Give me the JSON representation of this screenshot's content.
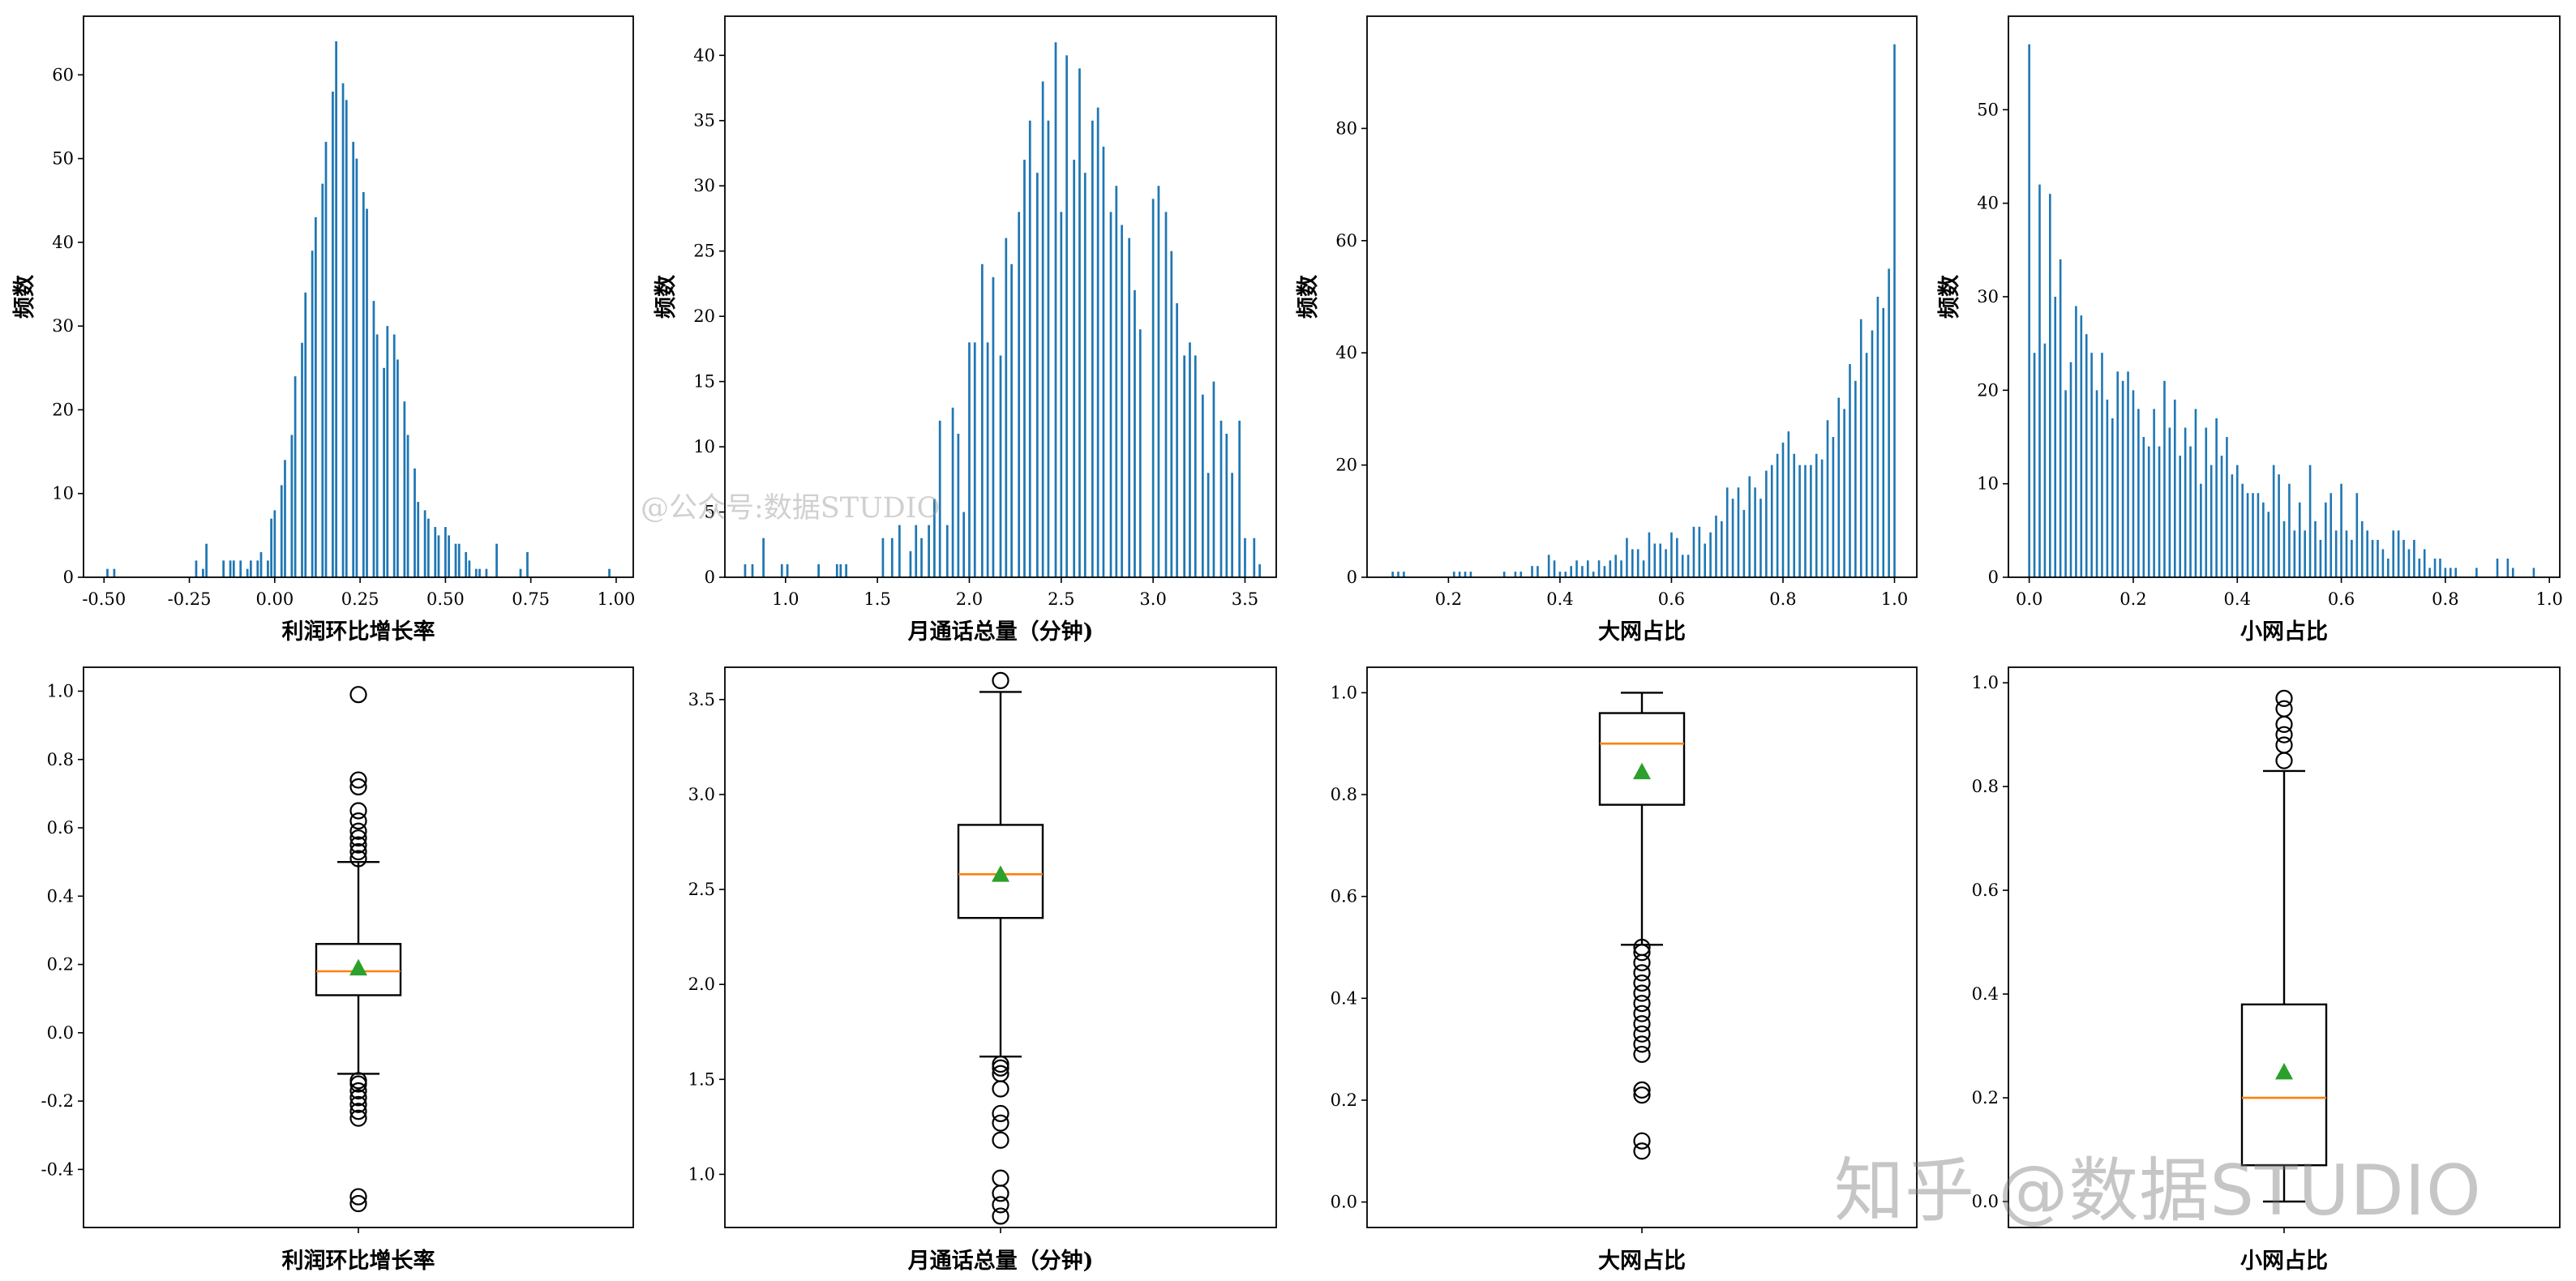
{
  "colors": {
    "bar": "#1f77b4",
    "median": "#ff7f0e",
    "mean": "#2ca02c",
    "frame": "#000000"
  },
  "watermarks": {
    "middle": "@公众号:数据STUDIO",
    "corner": "知乎 @数据STUDIO"
  },
  "chart_data": [
    {
      "type": "bar",
      "title": "",
      "xlabel": "利润环比增长率",
      "ylabel": "频数",
      "xlim": [
        -0.56,
        1.05
      ],
      "ylim": [
        0,
        67
      ],
      "xticks": [
        -0.5,
        -0.25,
        0.0,
        0.25,
        0.5,
        0.75,
        1.0
      ],
      "xtick_labels": [
        "-0.50",
        "-0.25",
        "0.00",
        "0.25",
        "0.50",
        "0.75",
        "1.00"
      ],
      "yticks": [
        0,
        10,
        20,
        30,
        40,
        50,
        60
      ],
      "ytick_labels": [
        "0",
        "10",
        "20",
        "30",
        "40",
        "50",
        "60"
      ],
      "bar_width": 0.0065,
      "x": [
        -0.49,
        -0.47,
        -0.23,
        -0.21,
        -0.2,
        -0.15,
        -0.13,
        -0.12,
        -0.1,
        -0.08,
        -0.07,
        -0.05,
        -0.04,
        -0.02,
        -0.01,
        0.0,
        0.02,
        0.03,
        0.05,
        0.06,
        0.08,
        0.09,
        0.11,
        0.12,
        0.14,
        0.15,
        0.17,
        0.18,
        0.2,
        0.21,
        0.23,
        0.24,
        0.26,
        0.27,
        0.29,
        0.3,
        0.32,
        0.33,
        0.35,
        0.36,
        0.38,
        0.39,
        0.41,
        0.42,
        0.44,
        0.45,
        0.47,
        0.48,
        0.5,
        0.51,
        0.53,
        0.54,
        0.56,
        0.57,
        0.59,
        0.6,
        0.62,
        0.65,
        0.72,
        0.74,
        0.98
      ],
      "values": [
        1,
        1,
        2,
        1,
        4,
        2,
        2,
        2,
        2,
        1,
        2,
        2,
        3,
        2,
        7,
        8,
        11,
        14,
        17,
        24,
        28,
        34,
        39,
        43,
        47,
        52,
        58,
        64,
        59,
        57,
        52,
        50,
        46,
        44,
        33,
        29,
        25,
        30,
        29,
        26,
        21,
        17,
        13,
        9,
        8,
        7,
        6,
        5,
        6,
        5,
        4,
        4,
        3,
        2,
        1,
        1,
        1,
        4,
        1,
        3,
        1
      ]
    },
    {
      "type": "bar",
      "title": "",
      "xlabel": "月通话总量（分钟)",
      "ylabel": "频数",
      "xlim": [
        0.67,
        3.67
      ],
      "ylim": [
        0,
        43
      ],
      "xticks": [
        1.0,
        1.5,
        2.0,
        2.5,
        3.0,
        3.5
      ],
      "xtick_labels": [
        "1.0",
        "1.5",
        "2.0",
        "2.5",
        "3.0",
        "3.5"
      ],
      "yticks": [
        0,
        5,
        10,
        15,
        20,
        25,
        30,
        35,
        40
      ],
      "ytick_labels": [
        "0",
        "5",
        "10",
        "15",
        "20",
        "25",
        "30",
        "35",
        "40"
      ],
      "bar_width": 0.012,
      "x": [
        0.78,
        0.82,
        0.88,
        0.98,
        1.01,
        1.18,
        1.28,
        1.3,
        1.33,
        1.53,
        1.58,
        1.62,
        1.68,
        1.71,
        1.74,
        1.78,
        1.81,
        1.84,
        1.88,
        1.91,
        1.94,
        1.97,
        2.0,
        2.03,
        2.07,
        2.1,
        2.13,
        2.17,
        2.2,
        2.23,
        2.27,
        2.3,
        2.33,
        2.37,
        2.4,
        2.43,
        2.47,
        2.5,
        2.53,
        2.57,
        2.6,
        2.63,
        2.67,
        2.7,
        2.73,
        2.77,
        2.8,
        2.83,
        2.87,
        2.9,
        2.93,
        3.0,
        3.03,
        3.07,
        3.1,
        3.13,
        3.17,
        3.2,
        3.23,
        3.27,
        3.3,
        3.33,
        3.37,
        3.4,
        3.43,
        3.47,
        3.5,
        3.55,
        3.58
      ],
      "values": [
        1,
        1,
        3,
        1,
        1,
        1,
        1,
        1,
        1,
        3,
        3,
        4,
        2,
        4,
        3,
        4,
        6,
        12,
        4,
        13,
        11,
        5,
        18,
        18,
        24,
        18,
        23,
        17,
        26,
        24,
        28,
        32,
        35,
        31,
        38,
        35,
        41,
        28,
        40,
        32,
        39,
        31,
        35,
        36,
        33,
        28,
        30,
        27,
        26,
        22,
        19,
        29,
        30,
        28,
        25,
        21,
        17,
        18,
        17,
        14,
        8,
        15,
        12,
        11,
        8,
        12,
        3,
        3,
        1
      ]
    },
    {
      "type": "bar",
      "title": "",
      "xlabel": "大网占比",
      "ylabel": "频数",
      "xlim": [
        0.054,
        1.04
      ],
      "ylim": [
        0,
        100
      ],
      "xticks": [
        0.2,
        0.4,
        0.6,
        0.8,
        1.0
      ],
      "xtick_labels": [
        "0.2",
        "0.4",
        "0.6",
        "0.8",
        "1.0"
      ],
      "yticks": [
        0,
        20,
        40,
        60,
        80
      ],
      "ytick_labels": [
        "0",
        "20",
        "40",
        "60",
        "80"
      ],
      "bar_width": 0.003,
      "x": [
        0.1,
        0.11,
        0.12,
        0.21,
        0.22,
        0.23,
        0.24,
        0.3,
        0.32,
        0.33,
        0.35,
        0.36,
        0.38,
        0.39,
        0.4,
        0.41,
        0.42,
        0.43,
        0.44,
        0.45,
        0.46,
        0.47,
        0.48,
        0.49,
        0.5,
        0.51,
        0.52,
        0.53,
        0.54,
        0.55,
        0.56,
        0.57,
        0.58,
        0.59,
        0.6,
        0.61,
        0.62,
        0.63,
        0.64,
        0.65,
        0.66,
        0.67,
        0.68,
        0.69,
        0.7,
        0.71,
        0.72,
        0.73,
        0.74,
        0.75,
        0.76,
        0.77,
        0.78,
        0.79,
        0.8,
        0.81,
        0.82,
        0.83,
        0.84,
        0.85,
        0.86,
        0.87,
        0.88,
        0.89,
        0.9,
        0.91,
        0.92,
        0.93,
        0.94,
        0.95,
        0.96,
        0.97,
        0.98,
        0.99,
        1.0
      ],
      "values": [
        1,
        1,
        1,
        1,
        1,
        1,
        1,
        1,
        1,
        1,
        2,
        2,
        4,
        3,
        1,
        1,
        2,
        3,
        2,
        3,
        1,
        3,
        2,
        3,
        4,
        3,
        7,
        5,
        5,
        3,
        8,
        6,
        6,
        5,
        8,
        7,
        4,
        4,
        9,
        9,
        6,
        8,
        11,
        10,
        16,
        14,
        16,
        12,
        18,
        16,
        14,
        19,
        20,
        22,
        24,
        26,
        22,
        20,
        20,
        20,
        22,
        21,
        28,
        25,
        32,
        30,
        38,
        35,
        46,
        40,
        44,
        50,
        48,
        55,
        95
      ]
    },
    {
      "type": "bar",
      "title": "",
      "xlabel": "小网占比",
      "ylabel": "频数",
      "xlim": [
        -0.04,
        1.02
      ],
      "ylim": [
        0,
        60
      ],
      "xticks": [
        0.0,
        0.2,
        0.4,
        0.6,
        0.8,
        1.0
      ],
      "xtick_labels": [
        "0.0",
        "0.2",
        "0.4",
        "0.6",
        "0.8",
        "1.0"
      ],
      "yticks": [
        0,
        10,
        20,
        30,
        40,
        50
      ],
      "ytick_labels": [
        "0",
        "10",
        "20",
        "30",
        "40",
        "50"
      ],
      "bar_width": 0.0035,
      "x": [
        0.0,
        0.01,
        0.02,
        0.03,
        0.04,
        0.05,
        0.06,
        0.07,
        0.08,
        0.09,
        0.1,
        0.11,
        0.12,
        0.13,
        0.14,
        0.15,
        0.16,
        0.17,
        0.18,
        0.19,
        0.2,
        0.21,
        0.22,
        0.23,
        0.24,
        0.25,
        0.26,
        0.27,
        0.28,
        0.29,
        0.3,
        0.31,
        0.32,
        0.33,
        0.34,
        0.35,
        0.36,
        0.37,
        0.38,
        0.39,
        0.4,
        0.41,
        0.42,
        0.43,
        0.44,
        0.45,
        0.46,
        0.47,
        0.48,
        0.49,
        0.5,
        0.51,
        0.52,
        0.53,
        0.54,
        0.55,
        0.56,
        0.57,
        0.58,
        0.59,
        0.6,
        0.61,
        0.62,
        0.63,
        0.64,
        0.65,
        0.66,
        0.67,
        0.68,
        0.69,
        0.7,
        0.71,
        0.72,
        0.73,
        0.74,
        0.75,
        0.76,
        0.77,
        0.78,
        0.79,
        0.8,
        0.81,
        0.82,
        0.86,
        0.9,
        0.92,
        0.93,
        0.97
      ],
      "values": [
        57,
        24,
        42,
        25,
        41,
        30,
        34,
        20,
        23,
        29,
        28,
        26,
        24,
        20,
        24,
        19,
        17,
        22,
        21,
        22,
        20,
        18,
        15,
        14,
        18,
        14,
        21,
        16,
        19,
        13,
        16,
        14,
        18,
        10,
        16,
        12,
        17,
        13,
        15,
        11,
        12,
        10,
        9,
        9,
        9,
        8,
        7,
        12,
        11,
        6,
        10,
        5,
        8,
        5,
        12,
        6,
        4,
        8,
        9,
        5,
        10,
        5,
        4,
        9,
        6,
        5,
        4,
        4,
        3,
        2,
        5,
        5,
        4,
        3,
        4,
        2,
        3,
        1,
        2,
        2,
        1,
        1,
        1,
        1,
        2,
        2,
        1,
        1
      ]
    },
    {
      "type": "boxplot",
      "title": "",
      "xlabel": "利润环比增长率",
      "ylabel": "",
      "ylim": [
        -0.57,
        1.07
      ],
      "yticks": [
        -0.4,
        -0.2,
        0.0,
        0.2,
        0.4,
        0.6,
        0.8,
        1.0
      ],
      "ytick_labels": [
        "-0.4",
        "-0.2",
        "0.0",
        "0.2",
        "0.4",
        "0.6",
        "0.8",
        "1.0"
      ],
      "q1": 0.11,
      "median": 0.18,
      "q3": 0.26,
      "mean": 0.19,
      "whisker_low": -0.12,
      "whisker_high": 0.5,
      "outliers": [
        -0.5,
        -0.48,
        -0.25,
        -0.23,
        -0.21,
        -0.19,
        -0.17,
        -0.15,
        -0.14,
        0.51,
        0.53,
        0.55,
        0.57,
        0.59,
        0.62,
        0.65,
        0.72,
        0.74,
        0.99
      ]
    },
    {
      "type": "boxplot",
      "title": "",
      "xlabel": "月通话总量（分钟)",
      "ylabel": "",
      "ylim": [
        0.72,
        3.67
      ],
      "yticks": [
        1.0,
        1.5,
        2.0,
        2.5,
        3.0,
        3.5
      ],
      "ytick_labels": [
        "1.0",
        "1.5",
        "2.0",
        "2.5",
        "3.0",
        "3.5"
      ],
      "q1": 2.35,
      "median": 2.58,
      "q3": 2.84,
      "mean": 2.58,
      "whisker_low": 1.62,
      "whisker_high": 3.54,
      "outliers": [
        0.78,
        0.84,
        0.9,
        0.98,
        1.18,
        1.27,
        1.32,
        1.45,
        1.53,
        1.56,
        1.58,
        3.6
      ]
    },
    {
      "type": "boxplot",
      "title": "",
      "xlabel": "大网占比",
      "ylabel": "",
      "ylim": [
        -0.05,
        1.05
      ],
      "yticks": [
        0.0,
        0.2,
        0.4,
        0.6,
        0.8,
        1.0
      ],
      "ytick_labels": [
        "0.0",
        "0.2",
        "0.4",
        "0.6",
        "0.8",
        "1.0"
      ],
      "q1": 0.78,
      "median": 0.9,
      "q3": 0.96,
      "mean": 0.845,
      "whisker_low": 0.505,
      "whisker_high": 1.0,
      "outliers": [
        0.1,
        0.12,
        0.21,
        0.22,
        0.29,
        0.31,
        0.33,
        0.35,
        0.37,
        0.39,
        0.41,
        0.43,
        0.45,
        0.47,
        0.49,
        0.5
      ]
    },
    {
      "type": "boxplot",
      "title": "",
      "xlabel": "小网占比",
      "ylabel": "",
      "ylim": [
        -0.05,
        1.03
      ],
      "yticks": [
        0.0,
        0.2,
        0.4,
        0.6,
        0.8,
        1.0
      ],
      "ytick_labels": [
        "0.0",
        "0.2",
        "0.4",
        "0.6",
        "0.8",
        "1.0"
      ],
      "q1": 0.07,
      "median": 0.2,
      "q3": 0.38,
      "mean": 0.25,
      "whisker_low": 0.0,
      "whisker_high": 0.83,
      "outliers": [
        0.85,
        0.88,
        0.9,
        0.92,
        0.95,
        0.97
      ]
    }
  ]
}
